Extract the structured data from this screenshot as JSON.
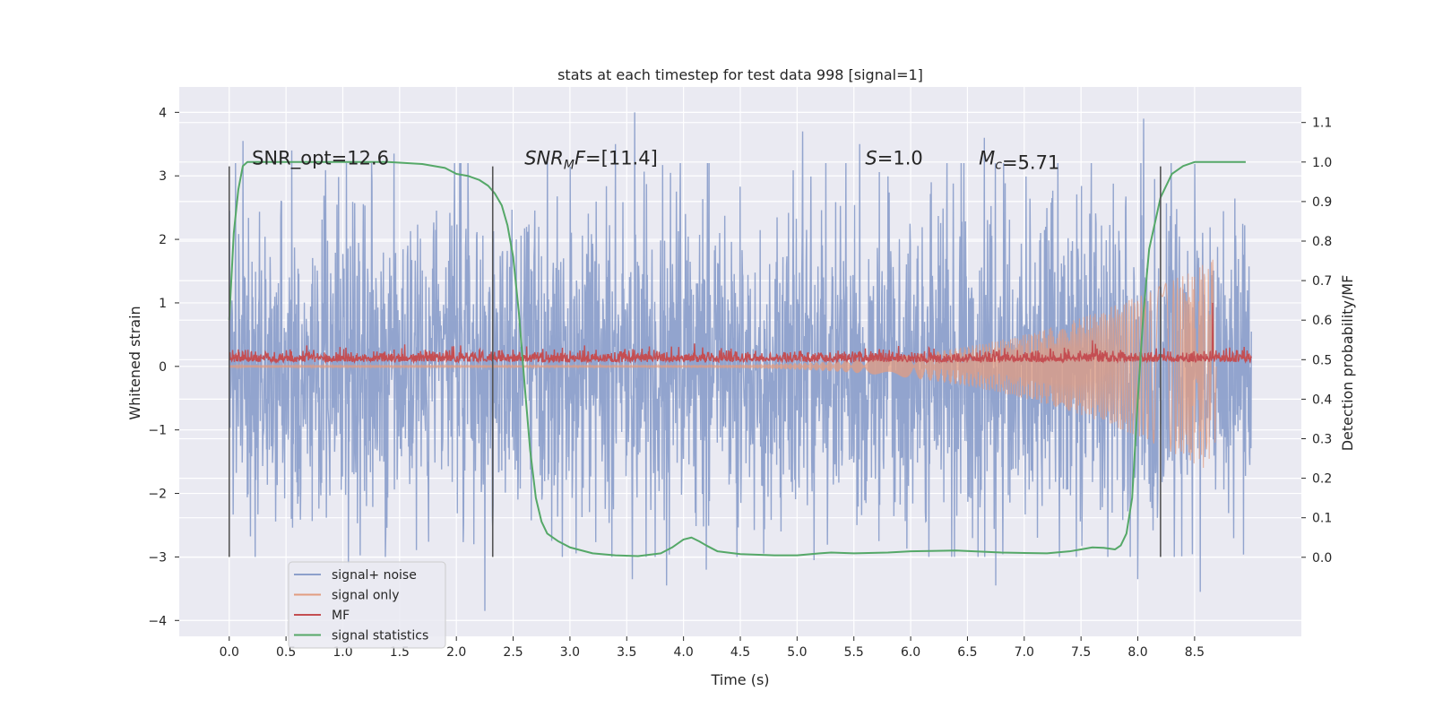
{
  "chart_data": {
    "type": "line",
    "title": "stats at each timestep for test data 998 [signal=1]",
    "xlabel": "Time (s)",
    "ylabel_left": "Whitened strain",
    "ylabel_right": "Detection probability/MF",
    "xlim": [
      -0.44,
      9.44
    ],
    "ylim_left": [
      -4.25,
      4.4
    ],
    "ylim_right": [
      -0.2,
      1.19
    ],
    "x_ticks": [
      "0.0",
      "0.5",
      "1.0",
      "1.5",
      "2.0",
      "2.5",
      "3.0",
      "3.5",
      "4.0",
      "4.5",
      "5.0",
      "5.5",
      "6.0",
      "6.5",
      "7.0",
      "7.5",
      "8.0",
      "8.5"
    ],
    "y_ticks_left": [
      "−4",
      "−3",
      "−2",
      "−1",
      "0",
      "1",
      "2",
      "3",
      "4"
    ],
    "y_ticks_right": [
      "0.0",
      "0.1",
      "0.2",
      "0.3",
      "0.4",
      "0.5",
      "0.6",
      "0.7",
      "0.8",
      "0.9",
      "1.0",
      "1.1"
    ],
    "grid": true,
    "legend_position": "lower-left",
    "vlines_x": [
      0.0,
      2.32,
      8.2
    ],
    "vline_left_range": [
      -3.0,
      3.15
    ],
    "annotations": [
      {
        "id": "snr_opt",
        "x": 0.2,
        "text": "SNR_opt=12.6"
      },
      {
        "id": "snr_mf",
        "x": 2.6,
        "text": "=[11.4]",
        "math_main": "SNR",
        "math_sub": "M",
        "math_tail": "F"
      },
      {
        "id": "s",
        "x": 5.6,
        "text": "=1.0",
        "math_main": "S"
      },
      {
        "id": "mc",
        "x": 6.6,
        "text": "=5.71",
        "math_main": "M",
        "math_sub": "c"
      }
    ],
    "annotation_y_left": 3.15,
    "colors": {
      "signal_noise": "#8da0cb",
      "signal_only": "#e29c80",
      "mf": "#c44e52",
      "signal_stats": "#55a868",
      "vline": "#555555",
      "background": "#eaeaf2",
      "grid": "#ffffff"
    },
    "series": [
      {
        "name": "signal+ noise",
        "axis": "left",
        "kind": "noise",
        "x_range": [
          0.0,
          9.0
        ],
        "std": 1.25,
        "peaks": [
          {
            "x": 0.12,
            "y": 3.55
          },
          {
            "x": 0.55,
            "y": 3.4
          },
          {
            "x": 1.45,
            "y": 3.35
          },
          {
            "x": 2.8,
            "y": 3.3
          },
          {
            "x": 3.4,
            "y": 3.5
          },
          {
            "x": 3.57,
            "y": 4.0
          },
          {
            "x": 5.05,
            "y": 3.7
          },
          {
            "x": 5.55,
            "y": 3.5
          },
          {
            "x": 6.65,
            "y": 3.6
          },
          {
            "x": 8.05,
            "y": 3.9
          },
          {
            "x": 2.25,
            "y": -3.85
          },
          {
            "x": 3.55,
            "y": -3.35
          },
          {
            "x": 3.85,
            "y": -3.45
          },
          {
            "x": 4.2,
            "y": -3.2
          },
          {
            "x": 6.75,
            "y": -3.45
          },
          {
            "x": 8.0,
            "y": -3.35
          },
          {
            "x": 8.55,
            "y": -3.55
          },
          {
            "x": 1.05,
            "y": -3.1
          },
          {
            "x": 5.15,
            "y": -3.05
          }
        ]
      },
      {
        "name": "signal only",
        "axis": "left",
        "kind": "chirp",
        "x_range": [
          0.0,
          8.66
        ],
        "onset": 3.5,
        "peak_amp": 1.7,
        "merger_x": 8.66
      },
      {
        "name": "MF",
        "axis": "left",
        "kind": "mf",
        "x_range": [
          0.0,
          9.0
        ],
        "base": 0.07,
        "amp": 0.12,
        "spike": {
          "x": 8.66,
          "y": 1.0
        }
      },
      {
        "name": "signal statistics",
        "axis": "right",
        "kind": "curve",
        "x": [
          0.0,
          0.04,
          0.08,
          0.12,
          0.16,
          0.2,
          0.35,
          0.6,
          1.0,
          1.4,
          1.7,
          1.9,
          2.0,
          2.1,
          2.2,
          2.28,
          2.34,
          2.4,
          2.45,
          2.5,
          2.55,
          2.6,
          2.65,
          2.7,
          2.75,
          2.8,
          2.9,
          3.0,
          3.2,
          3.4,
          3.6,
          3.8,
          3.9,
          4.0,
          4.07,
          4.14,
          4.2,
          4.3,
          4.5,
          4.8,
          5.0,
          5.2,
          5.3,
          5.5,
          5.8,
          6.0,
          6.4,
          6.8,
          7.2,
          7.4,
          7.5,
          7.6,
          7.7,
          7.8,
          7.85,
          7.9,
          7.95,
          8.0,
          8.05,
          8.1,
          8.2,
          8.3,
          8.4,
          8.5,
          8.6,
          8.8,
          8.95
        ],
        "y": [
          0.6,
          0.82,
          0.93,
          0.99,
          1.0,
          1.0,
          1.0,
          1.0,
          1.0,
          1.0,
          0.995,
          0.985,
          0.97,
          0.965,
          0.955,
          0.94,
          0.92,
          0.89,
          0.84,
          0.76,
          0.62,
          0.44,
          0.27,
          0.15,
          0.09,
          0.06,
          0.04,
          0.025,
          0.01,
          0.005,
          0.003,
          0.01,
          0.025,
          0.045,
          0.05,
          0.04,
          0.03,
          0.015,
          0.008,
          0.005,
          0.005,
          0.01,
          0.012,
          0.01,
          0.012,
          0.015,
          0.017,
          0.012,
          0.01,
          0.015,
          0.02,
          0.025,
          0.024,
          0.02,
          0.03,
          0.06,
          0.15,
          0.4,
          0.62,
          0.78,
          0.91,
          0.97,
          0.99,
          1.0,
          1.0,
          1.0,
          1.0
        ]
      }
    ]
  }
}
